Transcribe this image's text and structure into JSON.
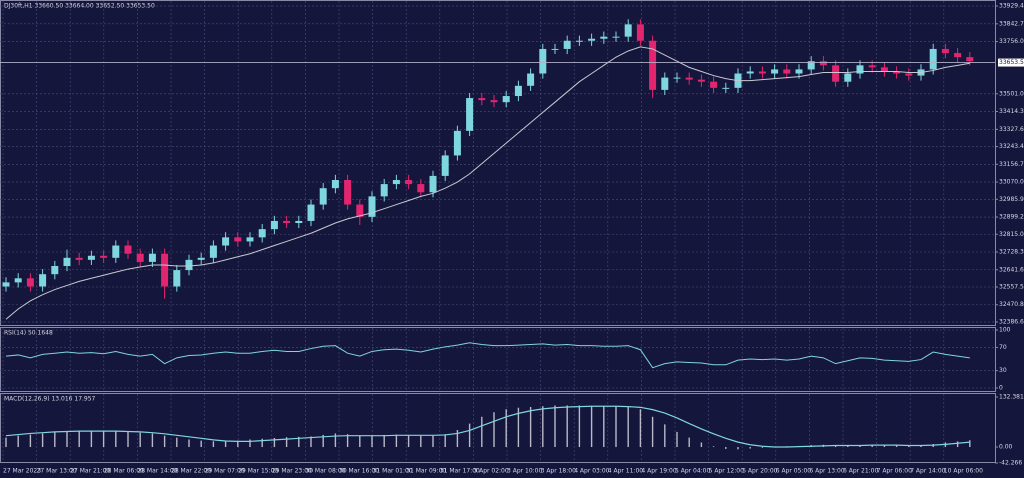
{
  "chart_data": [
    {
      "type": "candlestick",
      "title": "DJ30ft,H1  33660.50 33664.00 33652.50 33653.50",
      "up_color": "#7ed6de",
      "down_color": "#e3246f",
      "grid": true,
      "open": [
        32560,
        32580,
        32600,
        32560,
        32620,
        32660,
        32700,
        32690,
        32710,
        32700,
        32760,
        32720,
        32680,
        32720,
        32560,
        32640,
        32690,
        32700,
        32760,
        32800,
        32780,
        32800,
        32840,
        32880,
        32870,
        32880,
        32960,
        33040,
        33080,
        32960,
        32900,
        33000,
        33060,
        33080,
        33060,
        33020,
        33100,
        33200,
        33320,
        33480,
        33470,
        33460,
        33490,
        33540,
        33600,
        33720,
        33720,
        33760,
        33760,
        33770,
        33780,
        33780,
        33840,
        33760,
        33520,
        33580,
        33580,
        33570,
        33560,
        33530,
        33530,
        33600,
        33610,
        33600,
        33620,
        33600,
        33620,
        33660,
        33640,
        33560,
        33600,
        33640,
        33630,
        33610,
        33600,
        33590,
        33620,
        33720,
        33700,
        33680
      ],
      "high": [
        32605,
        32625,
        32625,
        32645,
        32685,
        32740,
        32725,
        32735,
        32735,
        32785,
        32785,
        32745,
        32745,
        32745,
        32665,
        32715,
        32725,
        32785,
        32825,
        32825,
        32825,
        32865,
        32905,
        32905,
        32905,
        32985,
        33065,
        33105,
        33105,
        32985,
        33025,
        33085,
        33105,
        33105,
        33085,
        33125,
        33225,
        33345,
        33505,
        33505,
        33495,
        33515,
        33565,
        33625,
        33745,
        33745,
        33785,
        33785,
        33795,
        33805,
        33805,
        33865,
        33865,
        33785,
        33605,
        33605,
        33605,
        33595,
        33585,
        33555,
        33625,
        33635,
        33635,
        33645,
        33645,
        33645,
        33685,
        33685,
        33665,
        33625,
        33665,
        33665,
        33655,
        33635,
        33625,
        33645,
        33745,
        33745,
        33725,
        33705
      ],
      "low": [
        32535,
        32555,
        32535,
        32535,
        32595,
        32635,
        32665,
        32665,
        32675,
        32675,
        32695,
        32655,
        32655,
        32500,
        32535,
        32615,
        32665,
        32675,
        32735,
        32755,
        32755,
        32775,
        32815,
        32845,
        32845,
        32855,
        32935,
        33015,
        32935,
        32860,
        32875,
        32975,
        33035,
        33035,
        32995,
        32995,
        33075,
        33175,
        33295,
        33445,
        33435,
        33435,
        33465,
        33515,
        33575,
        33695,
        33695,
        33735,
        33735,
        33745,
        33755,
        33755,
        33735,
        33480,
        33495,
        33555,
        33545,
        33535,
        33505,
        33505,
        33505,
        33575,
        33575,
        33575,
        33575,
        33575,
        33595,
        33615,
        33535,
        33535,
        33575,
        33605,
        33585,
        33575,
        33565,
        33565,
        33595,
        33675,
        33655,
        33640
      ],
      "close": [
        32580,
        32600,
        32560,
        32620,
        32660,
        32700,
        32690,
        32710,
        32700,
        32760,
        32720,
        32680,
        32720,
        32560,
        32640,
        32690,
        32700,
        32760,
        32800,
        32780,
        32800,
        32840,
        32880,
        32870,
        32880,
        32960,
        33040,
        33080,
        32960,
        32900,
        33000,
        33060,
        33080,
        33060,
        33020,
        33100,
        33200,
        33320,
        33480,
        33470,
        33460,
        33490,
        33540,
        33600,
        33720,
        33720,
        33760,
        33760,
        33770,
        33780,
        33780,
        33840,
        33760,
        33520,
        33580,
        33580,
        33570,
        33560,
        33530,
        33530,
        33600,
        33610,
        33600,
        33620,
        33600,
        33620,
        33660,
        33640,
        33560,
        33600,
        33640,
        33630,
        33610,
        33600,
        33590,
        33620,
        33720,
        33700,
        33680,
        33660
      ],
      "ma": {
        "color": "#c9c9d2",
        "values": [
          32400,
          32450,
          32490,
          32520,
          32545,
          32565,
          32585,
          32600,
          32615,
          32630,
          32645,
          32655,
          32665,
          32665,
          32660,
          32660,
          32665,
          32675,
          32690,
          32705,
          32720,
          32740,
          32760,
          32780,
          32800,
          32820,
          32845,
          32870,
          32890,
          32905,
          32920,
          32940,
          32960,
          32980,
          33000,
          33015,
          33040,
          33070,
          33110,
          33160,
          33210,
          33260,
          33310,
          33360,
          33410,
          33460,
          33510,
          33560,
          33600,
          33640,
          33680,
          33710,
          33730,
          33720,
          33690,
          33660,
          33630,
          33610,
          33590,
          33575,
          33565,
          33565,
          33570,
          33575,
          33580,
          33585,
          33595,
          33605,
          33605,
          33605,
          33610,
          33610,
          33610,
          33610,
          33605,
          33605,
          33615,
          33630,
          33640,
          33650
        ]
      },
      "current_price": {
        "value": 33653.5,
        "label": "33653.50"
      },
      "ylim": [
        32367,
        33959
      ],
      "yticks": [
        33929.45,
        {
          "value": 33842.7,
          "label": "33842.70"
        },
        {
          "value": 33756,
          "label": "33756.00"
        },
        {
          "value": 33501,
          "label": "33501.00"
        },
        {
          "value": 33414.3,
          "label": "33414.30"
        },
        {
          "value": 33327.6,
          "label": "33327.60"
        },
        33243.45,
        33156.75,
        33070.05,
        {
          "value": 32985.9,
          "label": "32985.90"
        },
        {
          "value": 32899.2,
          "label": "32899.20"
        },
        32815.05,
        32728.35,
        32641.65,
        {
          "value": 32557.5,
          "label": "32557.50"
        },
        {
          "value": 32470.8,
          "label": "32470.80"
        },
        32386.65
      ],
      "x_labels": [
        "27 Mar 2023",
        "27 Mar 13:00",
        "27 Mar 21:00",
        "28 Mar 06:00",
        "28 Mar 14:00",
        "28 Mar 22:00",
        "29 Mar 07:00",
        "29 Mar 15:00",
        "29 Mar 23:00",
        "30 Mar 08:00",
        "30 Mar 16:00",
        "31 Mar 01:00",
        "31 Mar 09:00",
        "31 Mar 17:00",
        "3 Apr 02:00",
        "3 Apr 10:00",
        "3 Apr 18:00",
        "4 Apr 03:00",
        "4 Apr 11:00",
        "4 Apr 19:00",
        "5 Apr 04:00",
        "5 Apr 12:00",
        "5 Apr 20:00",
        "6 Apr 05:00",
        "6 Apr 13:00",
        "6 Apr 21:00",
        "7 Apr 06:00",
        "7 Apr 14:00",
        "10 Apr 06:00"
      ]
    },
    {
      "type": "line",
      "title": "RSI(14) 50.1648",
      "color": "#7ed6de",
      "values": [
        55,
        57,
        52,
        58,
        60,
        62,
        60,
        61,
        59,
        63,
        58,
        55,
        58,
        42,
        52,
        56,
        57,
        60,
        62,
        60,
        60,
        63,
        65,
        63,
        63,
        68,
        72,
        73,
        60,
        55,
        63,
        66,
        67,
        65,
        62,
        67,
        71,
        74,
        78,
        75,
        73,
        73,
        74,
        75,
        76,
        74,
        75,
        73,
        73,
        72,
        72,
        73,
        66,
        35,
        42,
        45,
        44,
        43,
        40,
        40,
        48,
        50,
        49,
        50,
        48,
        50,
        55,
        52,
        42,
        47,
        52,
        51,
        48,
        47,
        46,
        49,
        62,
        58,
        55,
        52
      ],
      "ylim": [
        0,
        100
      ],
      "yticks": [
        0,
        30,
        70,
        100
      ]
    },
    {
      "type": "macd",
      "title": "MACD(12,26,9) 13.016 17.957",
      "histogram": {
        "color": "#b9b9c9",
        "values": [
          25,
          30,
          33,
          36,
          40,
          42,
          43,
          43,
          42,
          42,
          40,
          38,
          36,
          30,
          25,
          20,
          17,
          15,
          15,
          17,
          20,
          22,
          24,
          26,
          27,
          28,
          32,
          36,
          34,
          30,
          30,
          32,
          33,
          32,
          30,
          30,
          34,
          45,
          62,
          80,
          92,
          100,
          104,
          106,
          108,
          110,
          110,
          110,
          109,
          108,
          107,
          106,
          100,
          80,
          60,
          40,
          25,
          12,
          2,
          -5,
          -6,
          -4,
          -2,
          0,
          2,
          3,
          5,
          6,
          4,
          4,
          5,
          5,
          5,
          4,
          3,
          3,
          8,
          12,
          15,
          18
        ]
      },
      "signal": {
        "color": "#7ed6de",
        "values": [
          30,
          33,
          36,
          38,
          40,
          41,
          42,
          42,
          42,
          42,
          41,
          40,
          38,
          35,
          31,
          27,
          23,
          19,
          16,
          15,
          15,
          17,
          19,
          21,
          23,
          25,
          27,
          29,
          30,
          30,
          30,
          30,
          31,
          31,
          31,
          31,
          32,
          36,
          44,
          56,
          68,
          80,
          89,
          96,
          101,
          104,
          106,
          107,
          108,
          108,
          108,
          107,
          105,
          99,
          90,
          77,
          62,
          48,
          35,
          23,
          13,
          6,
          2,
          0,
          0,
          1,
          2,
          3,
          4,
          4,
          4,
          5,
          5,
          5,
          4,
          4,
          5,
          7,
          10,
          13
        ]
      },
      "ylim": [
        -42.266,
        132.381
      ],
      "yticks": [
        132.381,
        {
          "value": 0,
          "label": "0.00"
        },
        -42.266
      ]
    }
  ]
}
